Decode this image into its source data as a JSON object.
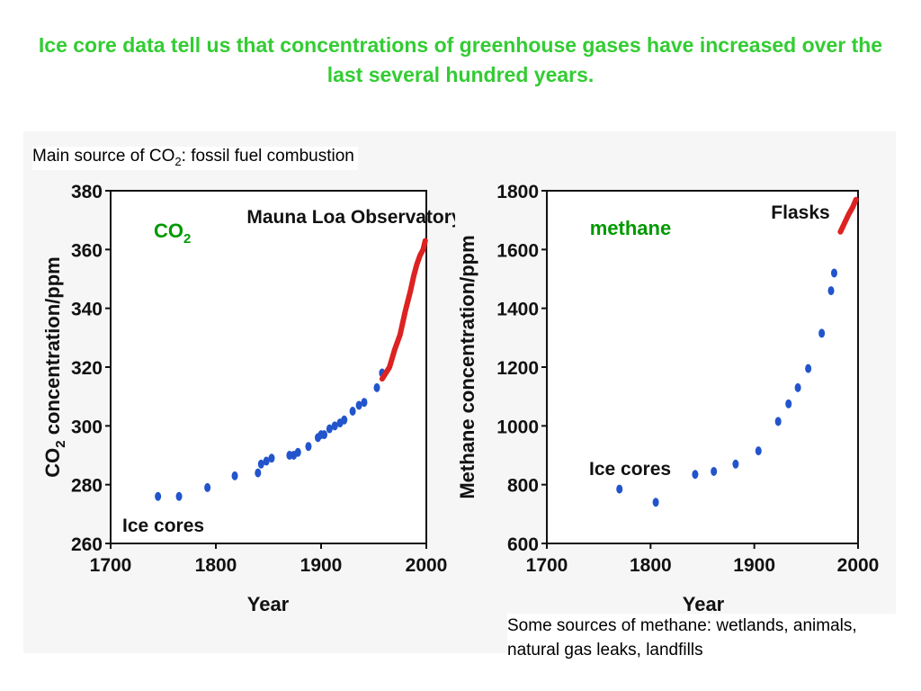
{
  "title": "Ice core data tell us that concentrations of greenhouse gases have increased over the last several hundred years.",
  "notes": {
    "co2_source_prefix": "Main source of CO",
    "co2_source_sub": "2",
    "co2_source_suffix": ": fossil fuel combustion",
    "methane_sources": "Some sources of methane: wetlands, animals, natural gas leaks, landfills"
  },
  "colors": {
    "title": "#33cc33",
    "species_label": "#009900",
    "points": "#2255cc",
    "instrument_line": "#dd2222"
  },
  "chart_data": [
    {
      "type": "scatter",
      "species_label": "CO",
      "species_label_sub": "2",
      "xlabel": "Year",
      "ylabel_prefix": "CO",
      "ylabel_sub": "2",
      "ylabel_suffix": " concentration/ppm",
      "xlim": [
        1700,
        2000
      ],
      "ylim": [
        260,
        380
      ],
      "x_ticks": [
        1700,
        1800,
        1900,
        2000
      ],
      "y_ticks": [
        260,
        280,
        300,
        320,
        340,
        360,
        380
      ],
      "grid": false,
      "series": [
        {
          "name": "Ice cores",
          "x": [
            1745,
            1765,
            1792,
            1818,
            1840,
            1843,
            1848,
            1853,
            1870,
            1874,
            1878,
            1888,
            1897,
            1900,
            1903,
            1908,
            1913,
            1918,
            1922,
            1930,
            1936,
            1941,
            1953,
            1958
          ],
          "y": [
            276,
            276,
            279,
            283,
            284,
            287,
            288,
            289,
            290,
            290,
            291,
            293,
            296,
            297,
            297,
            299,
            300,
            301,
            302,
            305,
            307,
            308,
            313,
            318
          ]
        },
        {
          "name": "Mauna Loa Observatory",
          "x": [
            1958,
            1965,
            1970,
            1975,
            1980,
            1985,
            1988,
            1991,
            1994,
            1997,
            1999
          ],
          "y": [
            316,
            320,
            326,
            331,
            339,
            346,
            351,
            355,
            358,
            360,
            363
          ]
        }
      ]
    },
    {
      "type": "scatter",
      "species_label": "methane",
      "xlabel": "Year",
      "ylabel": "Methane concentration/ppm",
      "xlim": [
        1700,
        2000
      ],
      "ylim": [
        600,
        1800
      ],
      "x_ticks": [
        1700,
        1800,
        1900,
        2000
      ],
      "y_ticks": [
        600,
        800,
        1000,
        1200,
        1400,
        1600,
        1800
      ],
      "grid": false,
      "series": [
        {
          "name": "Ice cores",
          "x": [
            1770,
            1805,
            1843,
            1861,
            1882,
            1904,
            1923,
            1933,
            1942,
            1952,
            1965,
            1974,
            1977
          ],
          "y": [
            785,
            740,
            835,
            845,
            870,
            915,
            1015,
            1075,
            1130,
            1195,
            1315,
            1460,
            1520
          ]
        },
        {
          "name": "Flasks",
          "x": [
            1983,
            1987,
            1991,
            1995,
            1998
          ],
          "y": [
            1660,
            1690,
            1720,
            1745,
            1770
          ]
        }
      ]
    }
  ]
}
